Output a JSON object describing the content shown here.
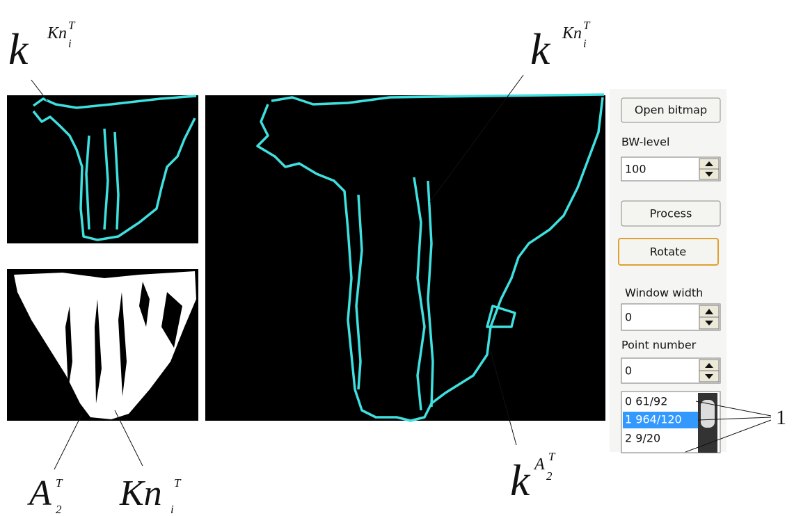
{
  "annotations": {
    "top_left": {
      "base": "k",
      "sup": "Kn",
      "sup_sub": "i",
      "sup_sup": "T"
    },
    "top_right": {
      "base": "k",
      "sup": "Kn",
      "sup_sub": "i",
      "sup_sup": "T"
    },
    "bottom_a": {
      "base": "A",
      "sub": "2",
      "sup": "T"
    },
    "bottom_kn": {
      "base": "Kn",
      "sub": "i",
      "sup": "T"
    },
    "bottom_right": {
      "base": "k",
      "sup": "A",
      "sup_sub": "2",
      "sup_sup": "T"
    },
    "marker": "1"
  },
  "controls": {
    "open_button": "Open bitmap",
    "bw_label": "BW-level",
    "bw_value": "100",
    "process_button": "Process",
    "rotate_button": "Rotate",
    "window_label": "Window width",
    "window_value": "0",
    "point_label": "Point number",
    "point_value": "0",
    "list_items": [
      "0 61/92",
      "1 964/120",
      "2 9/20"
    ]
  }
}
